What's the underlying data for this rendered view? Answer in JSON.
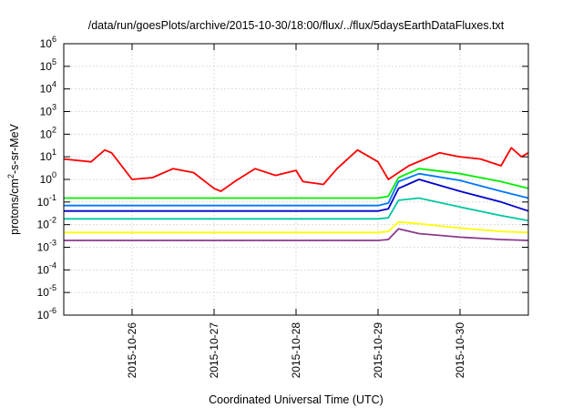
{
  "chart_data": {
    "type": "line",
    "title": "/data/run/goesPlots/archive/2015-10-30/18:00/flux/../flux/5daysEarthDataFluxes.txt",
    "xlabel": "Coordinated Universal Time (UTC)",
    "ylabel_parts": [
      "protons/cm",
      "2",
      "-s-sr-MeV"
    ],
    "y_scale": "log",
    "ylim": [
      1e-06,
      1000000.0
    ],
    "xlim": [
      "2015-10-25T04:00",
      "2015-10-30T20:00"
    ],
    "grid": true,
    "legend": "none",
    "y_ticks": [
      {
        "base": "10",
        "exp": "-6",
        "value": 1e-06
      },
      {
        "base": "10",
        "exp": "-5",
        "value": 1e-05
      },
      {
        "base": "10",
        "exp": "-4",
        "value": 0.0001
      },
      {
        "base": "10",
        "exp": "-3",
        "value": 0.001
      },
      {
        "base": "10",
        "exp": "-2",
        "value": 0.01
      },
      {
        "base": "10",
        "exp": "-1",
        "value": 0.1
      },
      {
        "base": "10",
        "exp": "0",
        "value": 1
      },
      {
        "base": "10",
        "exp": "1",
        "value": 10
      },
      {
        "base": "10",
        "exp": "2",
        "value": 100
      },
      {
        "base": "10",
        "exp": "3",
        "value": 1000
      },
      {
        "base": "10",
        "exp": "4",
        "value": 10000
      },
      {
        "base": "10",
        "exp": "5",
        "value": 100000
      },
      {
        "base": "10",
        "exp": "6",
        "value": 1000000
      }
    ],
    "x_ticks": [
      "2015-10-26",
      "2015-10-27",
      "2015-10-28",
      "2015-10-29",
      "2015-10-30"
    ],
    "series": [
      {
        "color": "#ff0000",
        "x": [
          "2015-10-25T04:00",
          "2015-10-25T12:00",
          "2015-10-25T16:00",
          "2015-10-25T18:00",
          "2015-10-26T00:00",
          "2015-10-26T06:00",
          "2015-10-26T12:00",
          "2015-10-26T18:00",
          "2015-10-27T00:00",
          "2015-10-27T02:00",
          "2015-10-27T06:00",
          "2015-10-27T12:00",
          "2015-10-27T18:00",
          "2015-10-28T00:00",
          "2015-10-28T02:00",
          "2015-10-28T08:00",
          "2015-10-28T12:00",
          "2015-10-28T18:00",
          "2015-10-29T00:00",
          "2015-10-29T03:00",
          "2015-10-29T06:00",
          "2015-10-29T09:00",
          "2015-10-29T18:00",
          "2015-10-30T00:00",
          "2015-10-30T06:00",
          "2015-10-30T12:00",
          "2015-10-30T15:00",
          "2015-10-30T18:00",
          "2015-10-30T20:00"
        ],
        "y": [
          8,
          6,
          20,
          15,
          1.0,
          1.2,
          3,
          2,
          0.4,
          0.3,
          0.8,
          3,
          1.5,
          2.5,
          0.8,
          0.6,
          3,
          20,
          6,
          1,
          2,
          4,
          15,
          10,
          8,
          4,
          25,
          10,
          15
        ]
      },
      {
        "color": "#00ee00",
        "x": [
          "2015-10-25T04:00",
          "2015-10-26T00:00",
          "2015-10-27T00:00",
          "2015-10-28T00:00",
          "2015-10-29T00:00",
          "2015-10-29T03:00",
          "2015-10-29T06:00",
          "2015-10-29T12:00",
          "2015-10-30T00:00",
          "2015-10-30T12:00",
          "2015-10-30T20:00"
        ],
        "y": [
          0.15,
          0.15,
          0.15,
          0.15,
          0.15,
          0.18,
          1.2,
          3,
          1.8,
          0.8,
          0.4
        ]
      },
      {
        "color": "#0077ff",
        "x": [
          "2015-10-25T04:00",
          "2015-10-26T00:00",
          "2015-10-27T00:00",
          "2015-10-28T00:00",
          "2015-10-29T00:00",
          "2015-10-29T03:00",
          "2015-10-29T06:00",
          "2015-10-29T12:00",
          "2015-10-30T00:00",
          "2015-10-30T12:00",
          "2015-10-30T20:00"
        ],
        "y": [
          0.07,
          0.07,
          0.07,
          0.07,
          0.07,
          0.09,
          0.8,
          1.8,
          0.9,
          0.3,
          0.15
        ]
      },
      {
        "color": "#0000cc",
        "x": [
          "2015-10-25T04:00",
          "2015-10-26T00:00",
          "2015-10-27T00:00",
          "2015-10-28T00:00",
          "2015-10-29T00:00",
          "2015-10-29T03:00",
          "2015-10-29T06:00",
          "2015-10-29T12:00",
          "2015-10-30T00:00",
          "2015-10-30T12:00",
          "2015-10-30T20:00"
        ],
        "y": [
          0.04,
          0.04,
          0.04,
          0.04,
          0.04,
          0.05,
          0.4,
          1.0,
          0.3,
          0.1,
          0.04
        ]
      },
      {
        "color": "#00c8a0",
        "x": [
          "2015-10-25T04:00",
          "2015-10-26T00:00",
          "2015-10-27T00:00",
          "2015-10-28T00:00",
          "2015-10-29T00:00",
          "2015-10-29T03:00",
          "2015-10-29T06:00",
          "2015-10-29T12:00",
          "2015-10-30T00:00",
          "2015-10-30T12:00",
          "2015-10-30T20:00"
        ],
        "y": [
          0.018,
          0.018,
          0.018,
          0.018,
          0.018,
          0.02,
          0.12,
          0.15,
          0.06,
          0.025,
          0.015
        ]
      },
      {
        "color": "#ffff00",
        "x": [
          "2015-10-25T04:00",
          "2015-10-26T00:00",
          "2015-10-27T00:00",
          "2015-10-28T00:00",
          "2015-10-29T00:00",
          "2015-10-29T03:00",
          "2015-10-29T06:00",
          "2015-10-29T12:00",
          "2015-10-30T00:00",
          "2015-10-30T12:00",
          "2015-10-30T20:00"
        ],
        "y": [
          0.0045,
          0.0045,
          0.0045,
          0.0045,
          0.0045,
          0.005,
          0.013,
          0.011,
          0.007,
          0.005,
          0.0045
        ]
      },
      {
        "color": "#8b3a8b",
        "x": [
          "2015-10-25T04:00",
          "2015-10-26T00:00",
          "2015-10-27T00:00",
          "2015-10-28T00:00",
          "2015-10-29T00:00",
          "2015-10-29T03:00",
          "2015-10-29T06:00",
          "2015-10-29T12:00",
          "2015-10-30T00:00",
          "2015-10-30T12:00",
          "2015-10-30T20:00"
        ],
        "y": [
          0.002,
          0.002,
          0.002,
          0.002,
          0.002,
          0.0022,
          0.0065,
          0.004,
          0.0028,
          0.0022,
          0.002
        ]
      }
    ]
  }
}
